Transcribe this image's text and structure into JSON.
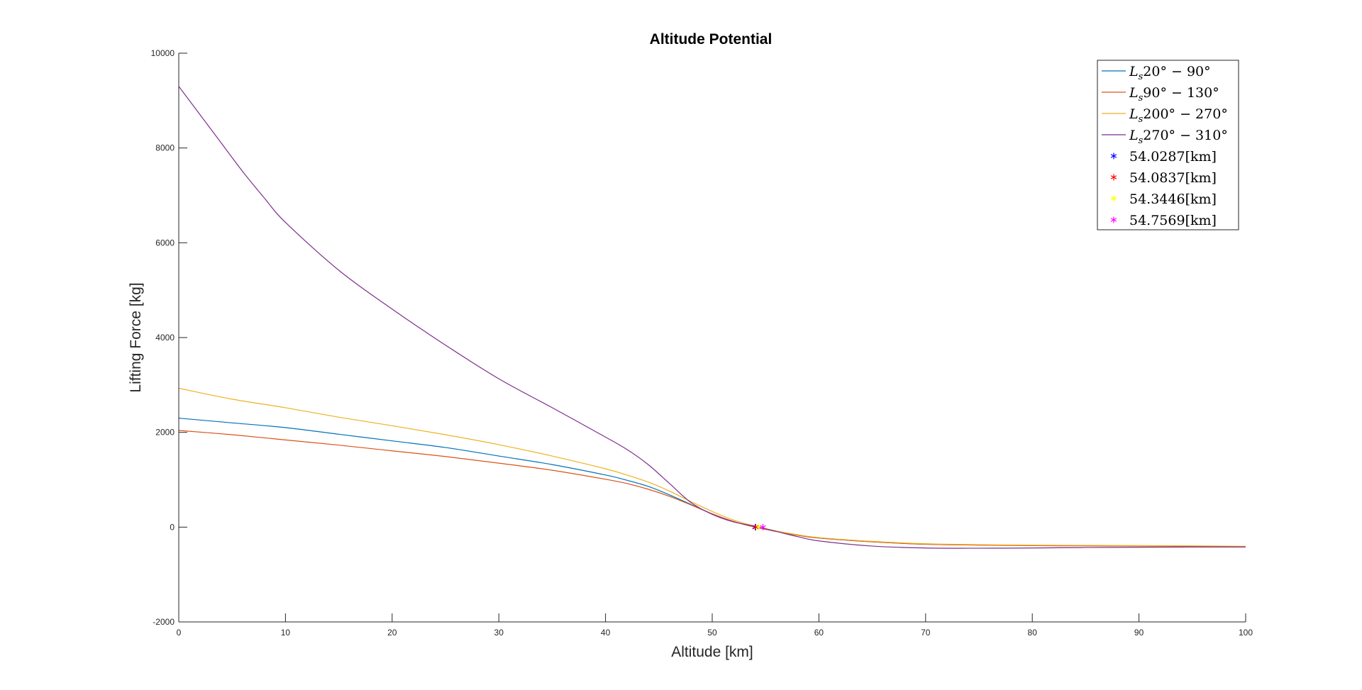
{
  "chart_data": {
    "type": "line",
    "title": "Altitude Potential",
    "xlabel": "Altitude [km]",
    "ylabel": "Lifting Force [kg]",
    "xlim": [
      0,
      100
    ],
    "ylim": [
      -2000,
      10000
    ],
    "xticks": [
      0,
      10,
      20,
      30,
      40,
      50,
      60,
      70,
      80,
      90,
      100
    ],
    "xtick_labels": [
      "0",
      "10",
      "20",
      "30",
      "40",
      "50",
      "60",
      "70",
      "80",
      "90",
      "100"
    ],
    "yticks": [
      -2000,
      0,
      2000,
      4000,
      6000,
      8000,
      10000
    ],
    "ytick_labels": [
      "-2000",
      "0",
      "2000",
      "4000",
      "6000",
      "8000",
      "10000"
    ],
    "grid": false,
    "legend_position": "top-right",
    "series": [
      {
        "name": "Ls20° − 90°",
        "legend": {
          "main": "L",
          "sub": "s",
          "rest": "20° − 90°"
        },
        "color": "#0072BD",
        "x": [
          0,
          5,
          10,
          15,
          20,
          25,
          30,
          35,
          40,
          42,
          44,
          46,
          48,
          50,
          52,
          54,
          56,
          58,
          60,
          65,
          70,
          75,
          80,
          85,
          90,
          95,
          100
        ],
        "y": [
          2300,
          2200,
          2100,
          1960,
          1820,
          1680,
          1500,
          1320,
          1100,
          990,
          860,
          680,
          480,
          280,
          120,
          0,
          -90,
          -170,
          -230,
          -310,
          -360,
          -375,
          -385,
          -390,
          -395,
          -400,
          -410
        ]
      },
      {
        "name": "Ls90° − 130°",
        "legend": {
          "main": "L",
          "sub": "s",
          "rest": "90° − 130°"
        },
        "color": "#D95319",
        "x": [
          0,
          5,
          10,
          15,
          20,
          25,
          30,
          35,
          40,
          42,
          44,
          46,
          48,
          50,
          52,
          54,
          56,
          58,
          60,
          65,
          70,
          75,
          80,
          85,
          90,
          95,
          100
        ],
        "y": [
          2040,
          1950,
          1840,
          1730,
          1610,
          1490,
          1350,
          1200,
          1010,
          920,
          800,
          650,
          470,
          280,
          120,
          0,
          -90,
          -170,
          -230,
          -310,
          -360,
          -380,
          -390,
          -395,
          -400,
          -405,
          -410
        ]
      },
      {
        "name": "Ls200° − 270°",
        "legend": {
          "main": "L",
          "sub": "s",
          "rest": "200° − 270°"
        },
        "color": "#EDB120",
        "x": [
          0,
          5,
          10,
          15,
          20,
          25,
          30,
          35,
          40,
          42,
          44,
          46,
          48,
          50,
          52,
          54,
          56,
          58,
          60,
          65,
          70,
          75,
          80,
          85,
          90,
          95,
          100
        ],
        "y": [
          2930,
          2700,
          2520,
          2320,
          2140,
          1950,
          1740,
          1500,
          1230,
          1100,
          950,
          760,
          540,
          330,
          150,
          20,
          -80,
          -160,
          -220,
          -300,
          -350,
          -370,
          -380,
          -385,
          -390,
          -395,
          -405
        ]
      },
      {
        "name": "Ls270° − 310°",
        "legend": {
          "main": "L",
          "sub": "s",
          "rest": "270° − 310°"
        },
        "color": "#7E2F8E",
        "x": [
          0,
          2,
          4,
          6,
          8,
          10,
          15,
          20,
          25,
          30,
          35,
          40,
          42,
          44,
          46,
          48,
          50,
          52,
          54,
          56,
          58,
          60,
          65,
          70,
          75,
          80,
          85,
          90,
          95,
          100
        ],
        "y": [
          9300,
          8700,
          8100,
          7500,
          6950,
          6430,
          5420,
          4600,
          3840,
          3130,
          2520,
          1900,
          1640,
          1320,
          920,
          520,
          270,
          110,
          20,
          -90,
          -200,
          -290,
          -400,
          -440,
          -445,
          -440,
          -430,
          -425,
          -420,
          -420
        ]
      }
    ],
    "points": [
      {
        "name": "54.0287[km]",
        "label": "54.0287[km]",
        "x": 54.0287,
        "y": 0,
        "color": "#0000FF"
      },
      {
        "name": "54.0837[km]",
        "label": "54.0837[km]",
        "x": 54.0837,
        "y": 0,
        "color": "#FF0000"
      },
      {
        "name": "54.3446[km]",
        "label": "54.3446[km]",
        "x": 54.3446,
        "y": 0,
        "color": "#FFFF00"
      },
      {
        "name": "54.7569[km]",
        "label": "54.7569[km]",
        "x": 54.7569,
        "y": 0,
        "color": "#FF00FF"
      }
    ]
  }
}
